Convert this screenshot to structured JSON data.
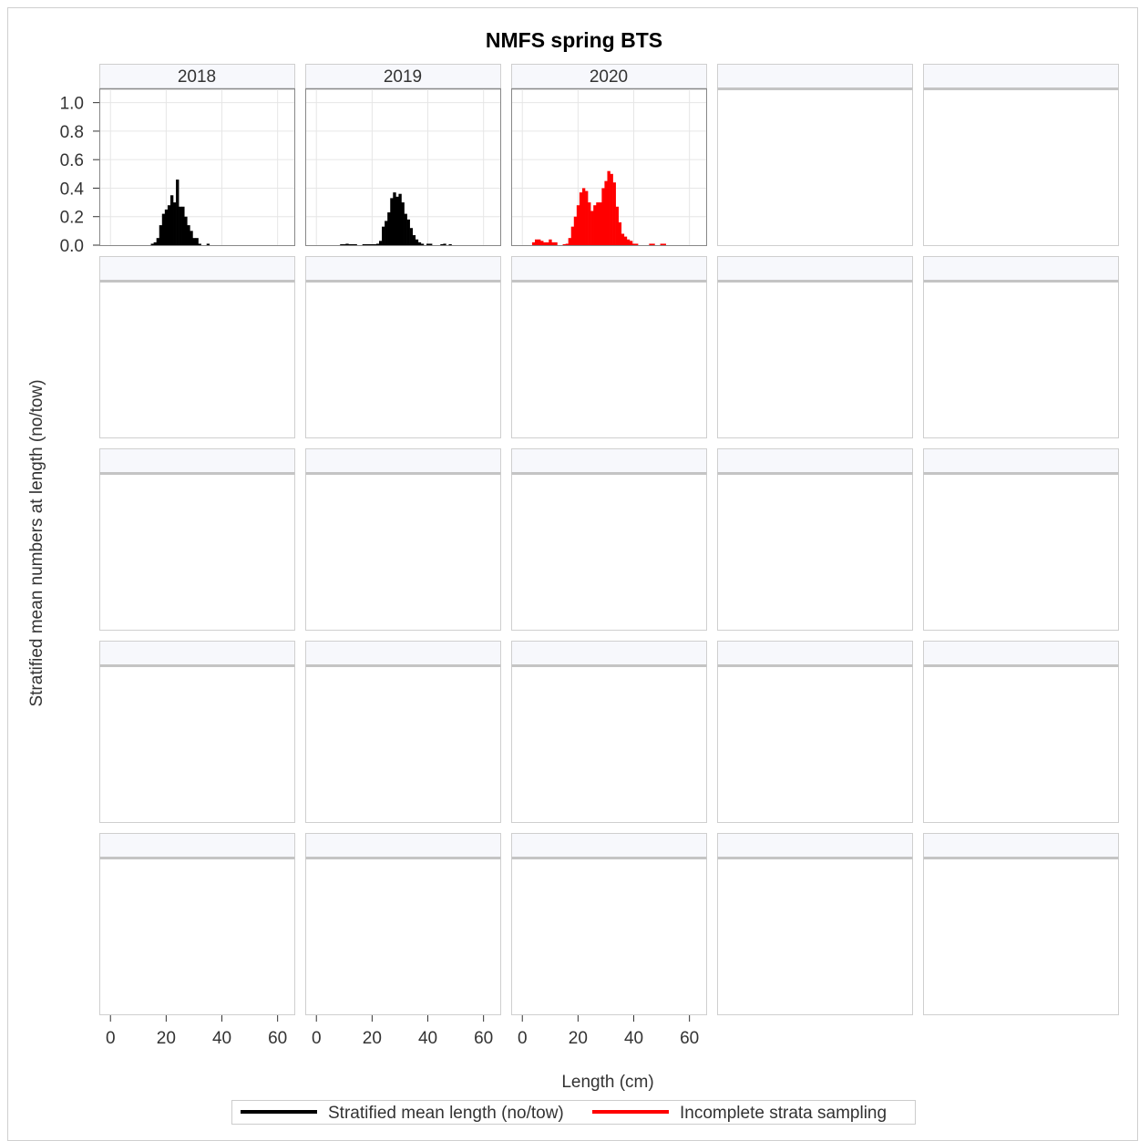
{
  "chart_data": {
    "type": "bar",
    "layout": "5x5 panel grid (only first three panels populated)",
    "title": "NMFS spring BTS",
    "xlabel": "Length (cm)",
    "ylabel": "Stratified mean numbers at length (no/tow)",
    "xlim": [
      -4,
      66
    ],
    "ylim": [
      0,
      1.1
    ],
    "x_ticks": [
      0,
      20,
      40,
      60
    ],
    "y_ticks": [
      0.0,
      0.2,
      0.4,
      0.6,
      0.8,
      1.0
    ],
    "y_tick_labels": [
      "0.0",
      "0.2",
      "0.4",
      "0.6",
      "0.8",
      "1.0"
    ],
    "grid": true,
    "legend": {
      "position": "bottom",
      "entries": [
        {
          "label": "Stratified mean length (no/tow)",
          "color": "#000000"
        },
        {
          "label": "Incomplete strata sampling",
          "color": "#ff0000"
        }
      ]
    },
    "panels": [
      {
        "label": "2018",
        "color": "#000000",
        "x": [
          15,
          16,
          17,
          18,
          19,
          20,
          21,
          22,
          23,
          24,
          25,
          26,
          27,
          28,
          29,
          30,
          31,
          32,
          33,
          35
        ],
        "values": [
          0.01,
          0.02,
          0.05,
          0.14,
          0.22,
          0.25,
          0.28,
          0.35,
          0.3,
          0.46,
          0.27,
          0.27,
          0.2,
          0.14,
          0.1,
          0.05,
          0.05,
          0.01,
          0.0,
          0.01
        ]
      },
      {
        "label": "2019",
        "color": "#000000",
        "x": [
          9,
          10,
          11,
          12,
          13,
          14,
          17,
          18,
          19,
          20,
          21,
          22,
          23,
          24,
          25,
          26,
          27,
          28,
          29,
          30,
          31,
          32,
          33,
          34,
          35,
          36,
          37,
          38,
          39,
          40,
          41,
          42,
          43,
          45,
          46,
          47,
          48
        ],
        "values": [
          0.005,
          0.005,
          0.01,
          0.005,
          0.005,
          0.005,
          0.005,
          0.005,
          0.005,
          0.005,
          0.005,
          0.01,
          0.03,
          0.13,
          0.17,
          0.23,
          0.33,
          0.37,
          0.34,
          0.36,
          0.3,
          0.22,
          0.18,
          0.12,
          0.07,
          0.04,
          0.02,
          0.01,
          0.0,
          0.01,
          0.01,
          0.0,
          0.0,
          0.005,
          0.01,
          0.0,
          0.005
        ]
      },
      {
        "label": "2020",
        "color": "#ff0000",
        "x": [
          4,
          5,
          6,
          7,
          8,
          9,
          10,
          11,
          12,
          15,
          16,
          17,
          18,
          19,
          20,
          21,
          22,
          23,
          24,
          25,
          26,
          27,
          28,
          29,
          30,
          31,
          32,
          33,
          34,
          35,
          36,
          37,
          38,
          39,
          40,
          41,
          45,
          46,
          47,
          48,
          50,
          51
        ],
        "values": [
          0.02,
          0.04,
          0.04,
          0.03,
          0.02,
          0.02,
          0.04,
          0.02,
          0.02,
          0.005,
          0.01,
          0.05,
          0.13,
          0.2,
          0.28,
          0.37,
          0.4,
          0.38,
          0.3,
          0.24,
          0.28,
          0.3,
          0.3,
          0.4,
          0.45,
          0.52,
          0.5,
          0.44,
          0.27,
          0.16,
          0.08,
          0.06,
          0.04,
          0.03,
          0.01,
          0.01,
          0.0,
          0.01,
          0.01,
          0.0,
          0.01,
          0.01
        ]
      },
      {
        "label": ""
      },
      {
        "label": ""
      },
      {
        "label": ""
      },
      {
        "label": ""
      },
      {
        "label": ""
      },
      {
        "label": ""
      },
      {
        "label": ""
      },
      {
        "label": ""
      },
      {
        "label": ""
      },
      {
        "label": ""
      },
      {
        "label": ""
      },
      {
        "label": ""
      },
      {
        "label": ""
      },
      {
        "label": ""
      },
      {
        "label": ""
      },
      {
        "label": ""
      },
      {
        "label": ""
      },
      {
        "label": ""
      },
      {
        "label": ""
      },
      {
        "label": ""
      },
      {
        "label": ""
      },
      {
        "label": ""
      }
    ]
  }
}
